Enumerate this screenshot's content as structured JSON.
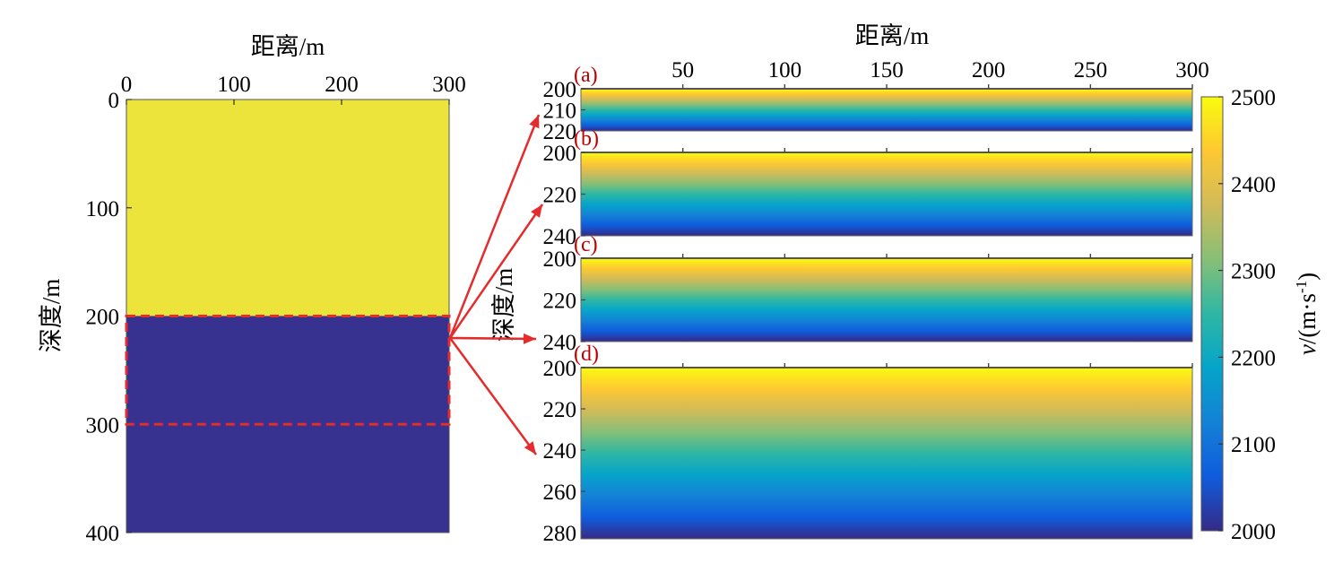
{
  "colors": {
    "viridis_stops": [
      "#352a87",
      "#0f5cdd",
      "#1481d6",
      "#06a4ca",
      "#2eb7a4",
      "#87bf77",
      "#d1bb59",
      "#fec832",
      "#f9fb0e"
    ],
    "high_velocity": "#ece43b",
    "low_velocity": "#37318f",
    "annotation": "#e52b2b",
    "panel_label": "#c00000"
  },
  "chart_data": [
    {
      "type": "heatmap",
      "name": "velocity-model-full",
      "xlabel": "距离/m",
      "ylabel": "深度/m",
      "xlim": [
        0,
        300
      ],
      "ylim": [
        0,
        400
      ],
      "x_ticks": [
        0,
        100,
        200,
        300
      ],
      "y_ticks": [
        0,
        100,
        200,
        300,
        400
      ],
      "layers": [
        {
          "depth_from": 0,
          "depth_to": 200,
          "velocity": 2500
        },
        {
          "depth_from": 200,
          "depth_to": 400,
          "velocity": 2000
        }
      ],
      "highlight_box": {
        "x_from": 0,
        "x_to": 300,
        "depth_from": 200,
        "depth_to": 300
      },
      "x_axis_position": "top"
    },
    {
      "type": "heatmap",
      "name": "transition-zone-panels",
      "xlabel": "距离/m",
      "ylabel": "深度/m",
      "xlim": [
        0,
        300
      ],
      "x_ticks": [
        50,
        100,
        150,
        200,
        250,
        300
      ],
      "x_tick_labels": [
        "50",
        "100",
        "150",
        "200",
        "250",
        "300"
      ],
      "x_axis_position": "top",
      "panels": [
        {
          "label": "(a)",
          "depth_range": [
            200,
            220
          ],
          "y_ticks": [
            200,
            210,
            220
          ],
          "v_top": 2500,
          "v_bottom": 2000
        },
        {
          "label": "(b)",
          "depth_range": [
            200,
            240
          ],
          "y_ticks": [
            200,
            220,
            240
          ],
          "v_top": 2500,
          "v_bottom": 2000
        },
        {
          "label": "(c)",
          "depth_range": [
            200,
            240
          ],
          "y_ticks": [
            200,
            220,
            240
          ],
          "v_top": 2500,
          "v_bottom": 2000
        },
        {
          "label": "(d)",
          "depth_range": [
            200,
            283
          ],
          "y_ticks": [
            200,
            220,
            240,
            260,
            280
          ],
          "v_top": 2500,
          "v_bottom": 2000
        }
      ],
      "colorbar": {
        "label": "v/(m·s-1)",
        "label_variable": "v",
        "label_open": "/(m·s",
        "label_superscript": "-1",
        "label_close": ")",
        "range": [
          2000,
          2500
        ],
        "ticks": [
          2000,
          2100,
          2200,
          2300,
          2400,
          2500
        ]
      }
    }
  ]
}
